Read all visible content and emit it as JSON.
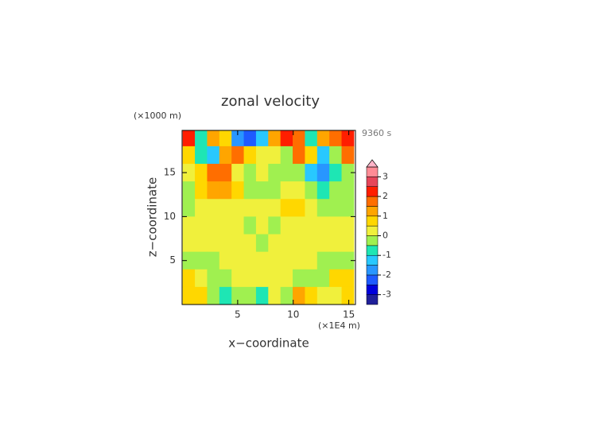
{
  "chart_data": {
    "type": "heatmap",
    "title": "zonal velocity",
    "annotation": "9360 s",
    "x_label": "x−coordinate",
    "x_unit": "(×1E4 m)",
    "y_label": "z−coordinate",
    "y_unit": "(×1000 m)",
    "xlim": [
      0,
      15.6
    ],
    "ylim": [
      0,
      19.8
    ],
    "xticks": [
      5,
      10,
      15
    ],
    "yticks": [
      5,
      10,
      15
    ],
    "x": [
      0.6,
      1.7,
      2.8,
      3.9,
      5.0,
      6.1,
      7.2,
      8.3,
      9.4,
      10.5,
      11.6,
      12.7,
      13.8,
      14.9
    ],
    "y": [
      19,
      17,
      15,
      13,
      11,
      9,
      7,
      5,
      3,
      1
    ],
    "z": [
      [
        2,
        -1,
        1,
        0.5,
        -2,
        -2.5,
        -1.5,
        1,
        2,
        1.5,
        -1,
        1,
        1.5,
        2
      ],
      [
        0.5,
        -1,
        -1.5,
        1,
        1.5,
        0.5,
        0,
        0,
        -0.5,
        1.5,
        0.5,
        -1.5,
        -0.5,
        1.5
      ],
      [
        0,
        0.5,
        1.5,
        1.5,
        0,
        -0.5,
        0,
        -0.3,
        -0.5,
        -0.5,
        -1.5,
        -2,
        -1,
        -0.3
      ],
      [
        -0.3,
        0.5,
        1,
        1,
        0.5,
        -0.3,
        -0.5,
        -0.3,
        0,
        0,
        -0.5,
        -1,
        -0.5,
        -0.3
      ],
      [
        -0.3,
        0.3,
        0.3,
        0.3,
        0.3,
        0.3,
        0.3,
        0.3,
        0.5,
        0.5,
        0.3,
        -0.3,
        -0.3,
        -0.3
      ],
      [
        0.3,
        0.3,
        0.3,
        0.3,
        0.3,
        -0.3,
        0.3,
        -0.3,
        0.3,
        0.3,
        0.3,
        0.3,
        0.3,
        0.3
      ],
      [
        0.3,
        0.3,
        0.3,
        0.3,
        0.3,
        0.3,
        -0.3,
        0.3,
        0.3,
        0.3,
        0.3,
        0.3,
        0.3,
        0.3
      ],
      [
        -0.3,
        -0.5,
        -0.3,
        0.3,
        0.3,
        0.3,
        0.3,
        0.3,
        0.3,
        0.3,
        0.3,
        -0.3,
        -0.3,
        -0.3
      ],
      [
        0.5,
        0.3,
        -0.3,
        -0.3,
        0.3,
        0.3,
        0.3,
        0.3,
        0.3,
        -0.3,
        -0.5,
        -0.3,
        0.5,
        0.5
      ],
      [
        0.5,
        0.5,
        -0.5,
        -1,
        -0.3,
        -0.3,
        -1,
        0.3,
        -0.3,
        1,
        0.5,
        0.3,
        0.3,
        0.5
      ]
    ],
    "levels": [
      -3.5,
      -3,
      -2.5,
      -2,
      -1.5,
      -1,
      -0.5,
      0,
      0.5,
      1,
      1.5,
      2,
      2.5,
      3,
      3.5
    ],
    "colors": [
      "#20209a",
      "#0000dc",
      "#1e5aff",
      "#2896ff",
      "#28c8ff",
      "#1ee6b4",
      "#a0f050",
      "#f0f03c",
      "#ffd700",
      "#ffa500",
      "#ff6e00",
      "#ff1e00",
      "#e6465a",
      "#ff8c96"
    ],
    "extend_color": "#ffb4c8",
    "cbar_ticks": [
      -3,
      -2,
      -1,
      0,
      1,
      2,
      3
    ]
  }
}
